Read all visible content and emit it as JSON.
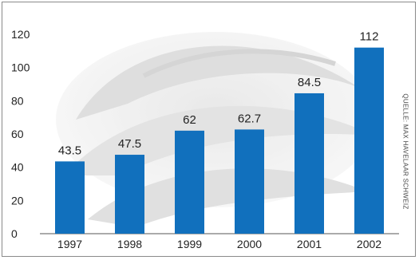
{
  "chart_data": {
    "type": "bar",
    "categories": [
      "1997",
      "1998",
      "1999",
      "2000",
      "2001",
      "2002"
    ],
    "values": [
      43.5,
      47.5,
      62,
      62.7,
      84.5,
      112
    ],
    "value_labels": [
      "43.5",
      "47.5",
      "62",
      "62.7",
      "84.5",
      "112"
    ],
    "title": "",
    "xlabel": "",
    "ylabel": "",
    "ylim": [
      0,
      120
    ],
    "yticks": [
      0,
      20,
      40,
      60,
      80,
      100,
      120
    ],
    "grid": false,
    "bar_color": "#1170bd"
  },
  "credit": "QUELLE: MAX HAVELAAR SCHWEIZ",
  "background_image": "bananas-photo"
}
